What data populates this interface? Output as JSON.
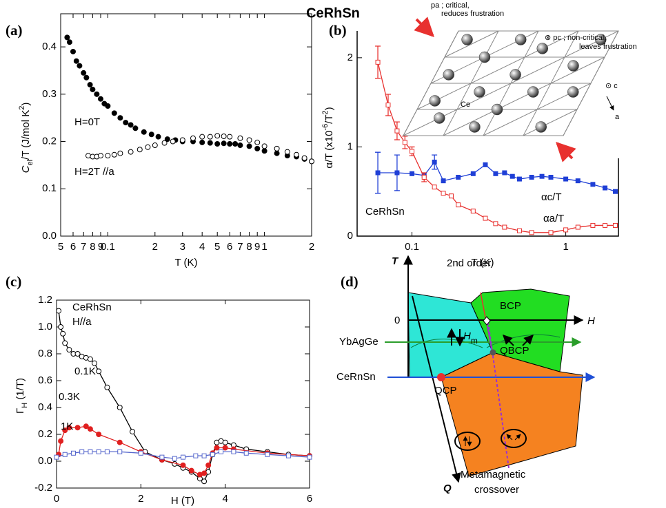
{
  "title": "CeRhSn",
  "chart_data": [
    {
      "type": "scatter",
      "panel_label": "(a)",
      "xlabel": "T (K)",
      "ylabel": [
        "C",
        "el",
        "/T (J/mol K",
        "2",
        ")"
      ],
      "xscale": "log",
      "xlim": [
        0.05,
        2
      ],
      "ylim": [
        0,
        0.47
      ],
      "xticks": [
        {
          "value": 0.05,
          "label": "5"
        },
        {
          "value": 0.06,
          "label": "6"
        },
        {
          "value": 0.07,
          "label": "7"
        },
        {
          "value": 0.08,
          "label": "8"
        },
        {
          "value": 0.09,
          "label": "9"
        },
        0.1,
        {
          "value": 0.2,
          "label": "2"
        },
        {
          "value": 0.3,
          "label": "3"
        },
        {
          "value": 0.4,
          "label": "4"
        },
        {
          "value": 0.5,
          "label": "5"
        },
        {
          "value": 0.6,
          "label": "6"
        },
        {
          "value": 0.7,
          "label": "7"
        },
        {
          "value": 0.8,
          "label": "8"
        },
        {
          "value": 0.9,
          "label": "9"
        },
        1,
        2
      ],
      "yticks": [
        {
          "value": 0,
          "label": "0.0"
        },
        0.1,
        0.2,
        0.3,
        0.4
      ],
      "series": [
        {
          "name": "H=0T",
          "color": "#000000",
          "marker": "circle",
          "filled": true,
          "x": [
            0.055,
            0.057,
            0.06,
            0.063,
            0.066,
            0.07,
            0.073,
            0.077,
            0.08,
            0.085,
            0.09,
            0.095,
            0.1,
            0.11,
            0.12,
            0.13,
            0.14,
            0.15,
            0.17,
            0.19,
            0.21,
            0.24,
            0.27,
            0.3,
            0.35,
            0.4,
            0.45,
            0.5,
            0.55,
            0.6,
            0.65,
            0.7,
            0.8,
            0.9,
            1.0,
            1.2,
            1.4,
            1.6,
            1.8,
            2.0
          ],
          "values": [
            0.42,
            0.41,
            0.39,
            0.37,
            0.36,
            0.345,
            0.335,
            0.32,
            0.31,
            0.3,
            0.29,
            0.28,
            0.275,
            0.26,
            0.25,
            0.24,
            0.235,
            0.228,
            0.22,
            0.215,
            0.21,
            0.205,
            0.203,
            0.2,
            0.2,
            0.198,
            0.197,
            0.195,
            0.196,
            0.195,
            0.195,
            0.192,
            0.19,
            0.185,
            0.18,
            0.175,
            0.17,
            0.168,
            0.163,
            0.158
          ]
        },
        {
          "name": "H=2T //a",
          "color": "#000000",
          "marker": "circle",
          "filled": false,
          "x": [
            0.075,
            0.08,
            0.085,
            0.09,
            0.1,
            0.11,
            0.12,
            0.14,
            0.16,
            0.18,
            0.2,
            0.23,
            0.26,
            0.3,
            0.35,
            0.4,
            0.45,
            0.5,
            0.55,
            0.6,
            0.7,
            0.8,
            0.9,
            1.0,
            1.2,
            1.4,
            1.6,
            1.8,
            2.0
          ],
          "values": [
            0.17,
            0.168,
            0.168,
            0.17,
            0.17,
            0.172,
            0.175,
            0.178,
            0.183,
            0.188,
            0.192,
            0.197,
            0.2,
            0.203,
            0.207,
            0.21,
            0.21,
            0.212,
            0.211,
            0.21,
            0.207,
            0.203,
            0.198,
            0.19,
            0.185,
            0.178,
            0.172,
            0.165,
            0.158
          ]
        }
      ]
    },
    {
      "type": "line",
      "panel_label": "(b)",
      "xlabel": "T (K)",
      "ylabel": [
        "α/T (x10",
        "-6",
        "/T",
        "2",
        ")"
      ],
      "xscale": "log",
      "xlim": [
        0.044,
        2.2
      ],
      "ylim": [
        0,
        2.3
      ],
      "xticks": [
        0.1,
        1
      ],
      "yticks": [
        0,
        1,
        2
      ],
      "annotations": [
        "CeRhSn"
      ],
      "inset": {
        "pa": "pa ; critical,",
        "pa2": "reduces frustration",
        "pc": "⊗ pc ; non-critical,",
        "pc2": "leaves frustration",
        "c": "⊙ c",
        "a": "a",
        "ce": "Ce"
      },
      "series": [
        {
          "name": "αc/T",
          "color": "#1f3fd6",
          "marker": "square",
          "filled": true,
          "x": [
            0.06,
            0.08,
            0.1,
            0.12,
            0.14,
            0.16,
            0.2,
            0.25,
            0.3,
            0.35,
            0.4,
            0.45,
            0.5,
            0.6,
            0.7,
            0.8,
            1.0,
            1.2,
            1.5,
            1.8,
            2.1
          ],
          "values": [
            0.71,
            0.71,
            0.7,
            0.68,
            0.83,
            0.62,
            0.66,
            0.7,
            0.8,
            0.7,
            0.71,
            0.67,
            0.64,
            0.66,
            0.67,
            0.66,
            0.64,
            0.62,
            0.58,
            0.54,
            0.5
          ],
          "errors": [
            0.23,
            0.2,
            null,
            null,
            0.08,
            null,
            null,
            null,
            null,
            null,
            null,
            null,
            null,
            null,
            null,
            null,
            null,
            null,
            null,
            null,
            null
          ]
        },
        {
          "name": "αa/T",
          "color": "#e8312f",
          "marker": "square",
          "filled": false,
          "x": [
            0.06,
            0.07,
            0.08,
            0.09,
            0.1,
            0.12,
            0.14,
            0.16,
            0.18,
            0.2,
            0.25,
            0.3,
            0.35,
            0.4,
            0.5,
            0.6,
            0.8,
            1.0,
            1.2,
            1.5,
            1.8,
            2.1
          ],
          "values": [
            1.95,
            1.47,
            1.18,
            1.05,
            0.95,
            0.66,
            0.55,
            0.48,
            0.45,
            0.35,
            0.28,
            0.2,
            0.14,
            0.1,
            0.06,
            0.04,
            0.04,
            0.07,
            0.1,
            0.12,
            0.12,
            0.12
          ],
          "errors": [
            0.18,
            0.12,
            0.1,
            0.07,
            0.05,
            0.05,
            null,
            null,
            null,
            null,
            null,
            null,
            null,
            null,
            null,
            null,
            null,
            null,
            null,
            null,
            null,
            null
          ]
        }
      ]
    },
    {
      "type": "line",
      "panel_label": "(c)",
      "xlabel": "H (T)",
      "ylabel": [
        "Γ",
        "H",
        " (1/T)"
      ],
      "xlim": [
        0,
        6
      ],
      "ylim": [
        -0.2,
        1.2
      ],
      "xticks": [
        0,
        2,
        4,
        6
      ],
      "yticks": [
        -0.2,
        {
          "value": 0,
          "label": "0.0"
        },
        0.2,
        0.4,
        0.6,
        0.8,
        {
          "value": 1,
          "label": "1.0"
        },
        1.2
      ],
      "annotations": [
        "CeRhSn",
        "H//a"
      ],
      "series": [
        {
          "name": "0.1K",
          "color": "#000000",
          "label_color": "#000000",
          "marker": "circle",
          "filled": false,
          "x": [
            0.05,
            0.1,
            0.15,
            0.2,
            0.3,
            0.4,
            0.5,
            0.6,
            0.7,
            0.8,
            0.9,
            1.0,
            1.2,
            1.5,
            1.8,
            2.1,
            2.5,
            2.8,
            3.0,
            3.2,
            3.4,
            3.5,
            3.6,
            3.7,
            3.8,
            3.9,
            4.0,
            4.2,
            4.5,
            5,
            5.5,
            6
          ],
          "values": [
            1.12,
            1.0,
            0.95,
            0.88,
            0.83,
            0.8,
            0.8,
            0.78,
            0.77,
            0.76,
            0.73,
            0.67,
            0.55,
            0.4,
            0.22,
            0.07,
            0.01,
            -0.02,
            -0.05,
            -0.08,
            -0.13,
            -0.15,
            -0.08,
            0.05,
            0.14,
            0.15,
            0.14,
            0.12,
            0.09,
            0.07,
            0.05,
            0.04
          ]
        },
        {
          "name": "0.3K",
          "color": "#e02020",
          "label_color": "#e02020",
          "marker": "circle",
          "filled": true,
          "x": [
            0.05,
            0.1,
            0.2,
            0.3,
            0.5,
            0.7,
            0.8,
            1,
            1.5,
            2,
            2.5,
            3,
            3.2,
            3.4,
            3.5,
            3.6,
            3.7,
            3.8,
            4,
            4.2,
            5,
            6
          ],
          "values": [
            0.05,
            0.15,
            0.23,
            0.25,
            0.25,
            0.26,
            0.24,
            0.2,
            0.14,
            0.07,
            0.01,
            -0.03,
            -0.07,
            -0.1,
            -0.09,
            -0.03,
            0.06,
            0.1,
            0.1,
            0.09,
            0.06,
            0.04
          ]
        },
        {
          "name": "1K",
          "color": "#5566cc",
          "label_color": "#1e90ff",
          "marker": "square",
          "filled": false,
          "x": [
            0,
            0.2,
            0.4,
            0.6,
            0.8,
            1,
            1.2,
            1.5,
            2,
            2.5,
            2.8,
            3,
            3.3,
            3.5,
            3.7,
            3.9,
            4.2,
            4.5,
            5,
            5.5,
            6
          ],
          "values": [
            0.03,
            0.05,
            0.06,
            0.07,
            0.07,
            0.07,
            0.07,
            0.07,
            0.06,
            0.03,
            0.02,
            0.03,
            0.04,
            0.04,
            0.05,
            0.07,
            0.07,
            0.06,
            0.05,
            0.04,
            0.03
          ]
        }
      ]
    }
  ],
  "diagram": {
    "panel_label": "(d)",
    "axis_t": "T",
    "axis_h": "H",
    "axis_q": "Q",
    "origin": "0",
    "second_order": "2nd order",
    "bcp": "BCP",
    "hm": [
      "H",
      "m"
    ],
    "ybagge": "YbAgGe",
    "qbcp": "QBCP",
    "cernsn": "CeRnSn",
    "qcp": "QCP",
    "metamagnetic": "Metamagnetic",
    "crossover": "crossover"
  }
}
